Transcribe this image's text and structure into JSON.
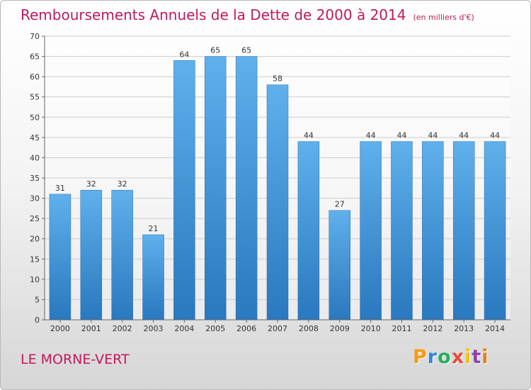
{
  "chart_data": {
    "type": "bar",
    "title": "Remboursements Annuels de la Dette de 2000 à 2014",
    "unit_label": "(en milliers d'€)",
    "categories": [
      "2000",
      "2001",
      "2002",
      "2003",
      "2004",
      "2005",
      "2006",
      "2007",
      "2008",
      "2009",
      "2010",
      "2011",
      "2012",
      "2013",
      "2014"
    ],
    "values": [
      31,
      32,
      32,
      21,
      64,
      65,
      65,
      58,
      44,
      27,
      44,
      44,
      44,
      44,
      44
    ],
    "ylim": [
      0,
      70
    ],
    "yticks": [
      0,
      5,
      10,
      15,
      20,
      25,
      30,
      35,
      40,
      45,
      50,
      55,
      60,
      65,
      70
    ],
    "grid": true,
    "bar_color": "#3f8fd6"
  },
  "footer": {
    "commune": "LE MORNE-VERT",
    "logo_letters": [
      "P",
      "r",
      "o",
      "x",
      "i",
      "t",
      "i"
    ],
    "logo_colors": [
      "#f39c12",
      "#2e86de",
      "#27ae60",
      "#e74c3c",
      "#f1c40f",
      "#8e44ad",
      "#e67e22"
    ]
  }
}
